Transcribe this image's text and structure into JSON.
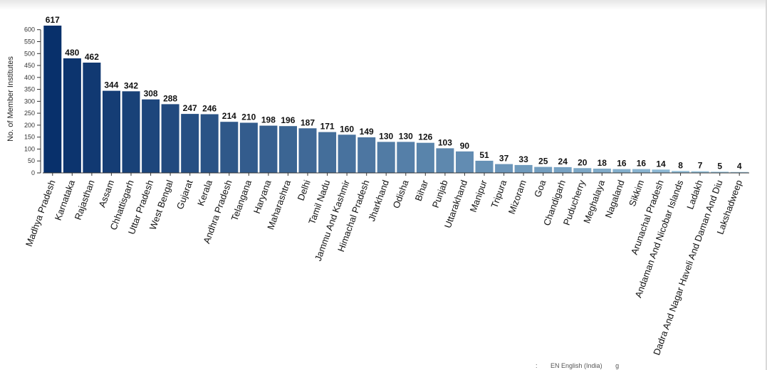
{
  "chart_data": {
    "type": "bar",
    "title": "",
    "xlabel": "",
    "ylabel": "No. of Member Institutes",
    "ylim": [
      0,
      617
    ],
    "yticks": [
      0,
      50,
      100,
      150,
      200,
      250,
      300,
      350,
      400,
      450,
      500,
      550,
      600
    ],
    "grid": false,
    "categories": [
      "Madhya Pradesh",
      "Karnataka",
      "Rajasthan",
      "Assam",
      "Chhattisgarh",
      "Uttar Pradesh",
      "West Bengal",
      "Gujarat",
      "Kerala",
      "Andhra Pradesh",
      "Telangana",
      "Haryana",
      "Maharashtra",
      "Delhi",
      "Tamil Nadu",
      "Jammu And Kashmir",
      "Himachal Pradesh",
      "Jharkhand",
      "Odisha",
      "Bihar",
      "Punjab",
      "Uttarakhand",
      "Manipur",
      "Tripura",
      "Mizoram",
      "Goa",
      "Chandigarh",
      "Puducherry",
      "Meghalaya",
      "Nagaland",
      "Sikkim",
      "Arunachal Pradesh",
      "Andaman And Nicobar Islands",
      "Ladakh",
      "Dadra And Nagar Haveli And Daman And Diu",
      "Lakshadweep"
    ],
    "values": [
      617,
      480,
      462,
      344,
      342,
      308,
      288,
      247,
      246,
      214,
      210,
      198,
      196,
      187,
      171,
      160,
      149,
      130,
      130,
      126,
      103,
      90,
      51,
      37,
      33,
      25,
      24,
      20,
      18,
      16,
      16,
      14,
      8,
      7,
      5,
      4
    ],
    "color_scale": [
      "#08306b",
      "#9ecae1"
    ]
  },
  "footer": {
    "fragment_1": ":",
    "fragment_2": "EN English (India)",
    "fragment_3": "g"
  }
}
